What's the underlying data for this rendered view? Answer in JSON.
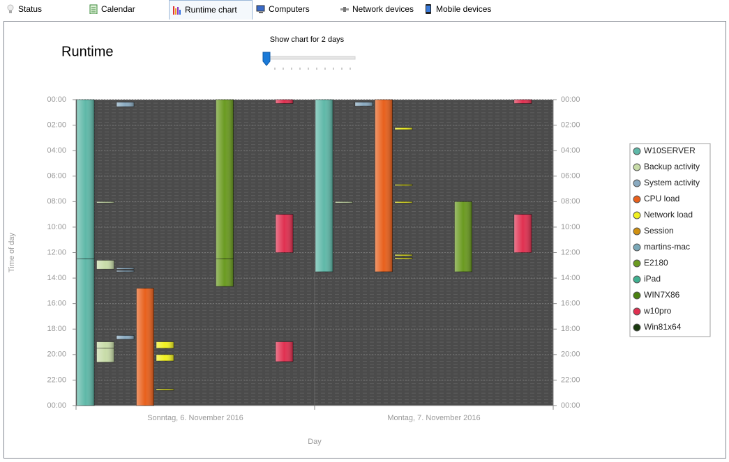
{
  "tabs": [
    "Status",
    "Calendar",
    "Runtime chart",
    "Computers",
    "Network devices",
    "Mobile devices"
  ],
  "panel": {
    "title": "Runtime",
    "slider_label": "Show chart for 2 days"
  },
  "chart_data": {
    "type": "range-bar",
    "ylabel": "Time of day",
    "xlabel": "Day",
    "categories": [
      "Sonntag, 6. November 2016",
      "Montag, 7. November 2016"
    ],
    "ylim": [
      0,
      24
    ],
    "y_inverted": true,
    "grid": true,
    "yticks": [
      {
        "value": 0,
        "label": "00:00"
      },
      {
        "value": 2,
        "label": "02:00"
      },
      {
        "value": 4,
        "label": "04:00"
      },
      {
        "value": 6,
        "label": "06:00"
      },
      {
        "value": 8,
        "label": "08:00"
      },
      {
        "value": 10,
        "label": "10:00"
      },
      {
        "value": 12,
        "label": "12:00"
      },
      {
        "value": 14,
        "label": "14:00"
      },
      {
        "value": 16,
        "label": "16:00"
      },
      {
        "value": 18,
        "label": "18:00"
      },
      {
        "value": 20,
        "label": "20:00"
      },
      {
        "value": 22,
        "label": "22:00"
      },
      {
        "value": 24,
        "label": "00:00"
      }
    ],
    "series": [
      {
        "name": "W10SERVER",
        "color": "#5fb8a8",
        "bars": [
          {
            "day": 0,
            "start": 0,
            "end": 12.5
          },
          {
            "day": 0,
            "start": 12.5,
            "end": 24
          },
          {
            "day": 1,
            "start": 0,
            "end": 13.5
          }
        ]
      },
      {
        "name": "Backup activity",
        "color": "#c8dca8",
        "bars": [
          {
            "day": 0,
            "start": 8,
            "end": 8.1
          },
          {
            "day": 0,
            "start": 12.6,
            "end": 13.3
          },
          {
            "day": 0,
            "start": 19,
            "end": 19.5
          },
          {
            "day": 0,
            "start": 19.5,
            "end": 20.6
          },
          {
            "day": 1,
            "start": 8,
            "end": 8.1
          }
        ]
      },
      {
        "name": "System activity",
        "color": "#8aaac0",
        "bars": [
          {
            "day": 0,
            "start": 0.2,
            "end": 0.55
          },
          {
            "day": 0,
            "start": 13.2,
            "end": 13.3
          },
          {
            "day": 0,
            "start": 13.4,
            "end": 13.5
          },
          {
            "day": 0,
            "start": 18.5,
            "end": 18.8
          },
          {
            "day": 1,
            "start": 0.2,
            "end": 0.5
          }
        ]
      },
      {
        "name": "CPU load",
        "color": "#e8601c",
        "bars": [
          {
            "day": 0,
            "start": 14.8,
            "end": 24
          },
          {
            "day": 1,
            "start": 0,
            "end": 13.5
          }
        ]
      },
      {
        "name": "Network load",
        "color": "#f0f020",
        "bars": [
          {
            "day": 0,
            "start": 19,
            "end": 19.5
          },
          {
            "day": 0,
            "start": 20,
            "end": 20.5
          },
          {
            "day": 0,
            "start": 22.7,
            "end": 22.8
          },
          {
            "day": 1,
            "start": 2.2,
            "end": 2.35
          },
          {
            "day": 1,
            "start": 6.65,
            "end": 6.75
          },
          {
            "day": 1,
            "start": 8,
            "end": 8.1
          },
          {
            "day": 1,
            "start": 12.15,
            "end": 12.25
          },
          {
            "day": 1,
            "start": 12.4,
            "end": 12.5
          }
        ]
      },
      {
        "name": "Session",
        "color": "#d09010",
        "bars": []
      },
      {
        "name": "martins-mac",
        "color": "#7aa8b8",
        "bars": []
      },
      {
        "name": "E2180",
        "color": "#6a9a20",
        "bars": [
          {
            "day": 0,
            "start": 0,
            "end": 12.5
          },
          {
            "day": 0,
            "start": 12.5,
            "end": 14.65
          },
          {
            "day": 1,
            "start": 8,
            "end": 13.5
          }
        ]
      },
      {
        "name": "iPad",
        "color": "#40b090",
        "bars": []
      },
      {
        "name": "WIN7X86",
        "color": "#4a8010",
        "bars": []
      },
      {
        "name": "w10pro",
        "color": "#e03050",
        "bars": [
          {
            "day": 0,
            "start": 0,
            "end": 0.3
          },
          {
            "day": 0,
            "start": 9,
            "end": 12
          },
          {
            "day": 0,
            "start": 19,
            "end": 20.55
          },
          {
            "day": 1,
            "start": 0,
            "end": 0.3
          },
          {
            "day": 1,
            "start": 9,
            "end": 12
          }
        ]
      },
      {
        "name": "Win81x64",
        "color": "#1a3a10",
        "bars": []
      }
    ]
  }
}
